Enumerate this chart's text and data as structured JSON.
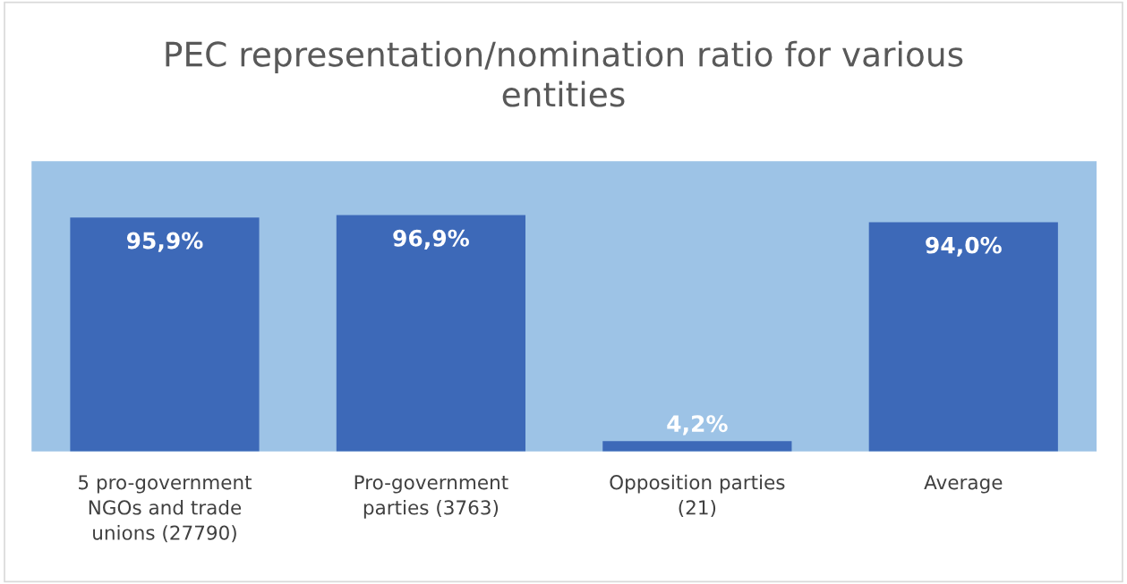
{
  "chart_data": {
    "type": "bar",
    "title": "PEC representation/nomination ratio for various entities",
    "categories": [
      "5 pro-government NGOs and trade unions (27790)",
      "Pro-government parties (3763)",
      "Opposition parties (21)",
      "Average"
    ],
    "values": [
      95.9,
      96.9,
      4.2,
      94.0
    ],
    "value_labels": [
      "95,9%",
      "96,9%",
      "4,2%",
      "94,0%"
    ],
    "color": "#3d69b8",
    "ylim": [
      0,
      119
    ],
    "tick_labels": false
  }
}
